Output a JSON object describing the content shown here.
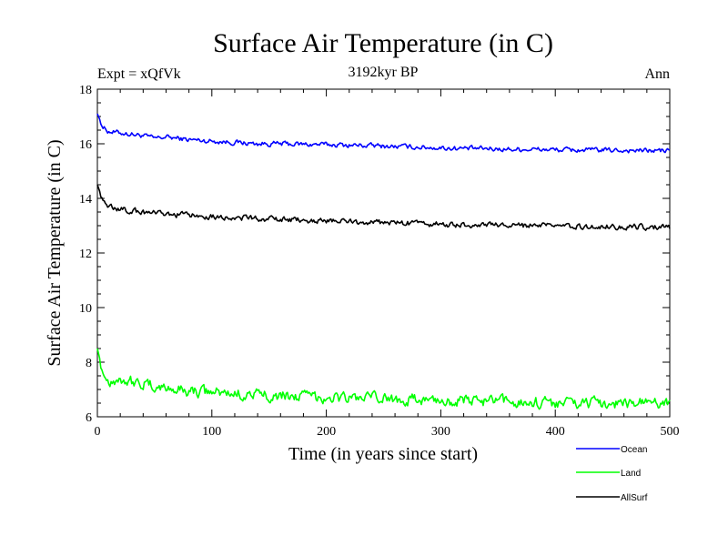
{
  "chart_data": {
    "type": "line",
    "title": "Surface Air Temperature (in C)",
    "subtitle": "3192kyr BP",
    "left_label": "Expt = xQfVk",
    "right_label": "Ann",
    "xlabel": "Time (in years since start)",
    "ylabel": "Surface Air Temperature (in C)",
    "xlim": [
      0,
      500
    ],
    "ylim": [
      6,
      18
    ],
    "x_ticks": [
      0,
      100,
      200,
      300,
      400,
      500
    ],
    "y_ticks": [
      6,
      8,
      10,
      12,
      14,
      16,
      18
    ],
    "grid": false,
    "legend_position": "bottom-right",
    "x": [
      0,
      5,
      10,
      20,
      30,
      40,
      50,
      60,
      70,
      80,
      100,
      120,
      140,
      160,
      180,
      200,
      220,
      240,
      260,
      280,
      300,
      320,
      340,
      360,
      380,
      400,
      420,
      440,
      460,
      480,
      500
    ],
    "series": [
      {
        "name": "Ocean",
        "color": "#0000ff",
        "values": [
          17.1,
          16.6,
          16.45,
          16.4,
          16.35,
          16.3,
          16.2,
          16.25,
          16.2,
          16.15,
          16.1,
          16.05,
          16.0,
          16.0,
          15.98,
          15.97,
          15.95,
          15.93,
          15.9,
          15.88,
          15.85,
          15.83,
          15.82,
          15.8,
          15.8,
          15.78,
          15.77,
          15.77,
          15.76,
          15.75,
          15.75
        ]
      },
      {
        "name": "Land",
        "color": "#00ff00",
        "values": [
          8.5,
          7.6,
          7.3,
          7.4,
          7.3,
          7.2,
          7.1,
          7.05,
          7.0,
          6.95,
          6.9,
          6.85,
          6.8,
          6.78,
          6.75,
          6.72,
          6.7,
          6.68,
          6.65,
          6.62,
          6.6,
          6.58,
          6.56,
          6.55,
          6.54,
          6.52,
          6.5,
          6.5,
          6.5,
          6.5,
          6.5
        ]
      },
      {
        "name": "AllSurf",
        "color": "#000000",
        "values": [
          14.5,
          13.9,
          13.7,
          13.6,
          13.55,
          13.5,
          13.45,
          13.4,
          13.4,
          13.38,
          13.35,
          13.3,
          13.25,
          13.22,
          13.2,
          13.18,
          13.15,
          13.12,
          13.1,
          13.08,
          13.05,
          13.03,
          13.02,
          13.0,
          13.0,
          12.98,
          12.97,
          12.97,
          12.96,
          12.95,
          12.95
        ]
      }
    ]
  }
}
